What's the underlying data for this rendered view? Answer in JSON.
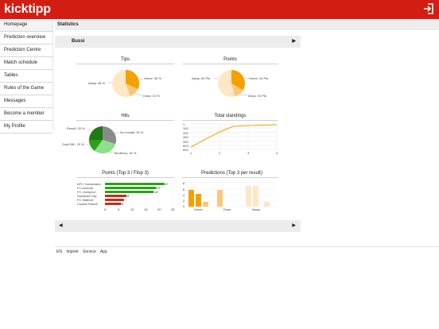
{
  "app": {
    "name": "kicktipp"
  },
  "sidebar": {
    "items": [
      {
        "label": "Homepage"
      },
      {
        "label": "Prediction overview"
      },
      {
        "label": "Prediction Centre"
      },
      {
        "label": "Match schedule"
      },
      {
        "label": "Tables"
      },
      {
        "label": "Rules of the Game"
      },
      {
        "label": "Messages"
      },
      {
        "label": "Become a member"
      },
      {
        "label": "My Profile"
      }
    ]
  },
  "section": {
    "title": "Statistics"
  },
  "player": {
    "name": "Bussi"
  },
  "colors": {
    "brand": "#d21e12",
    "orange": "#f4a100",
    "light_orange": "#fbc87a",
    "pale": "#fde7c4",
    "dark_green": "#1e7a12",
    "green": "#2aa11a",
    "light_green": "#8ee08a",
    "grey": "#8a8a8a",
    "red": "#c0301e"
  },
  "charts": {
    "tips": {
      "title": "Tips",
      "slices": [
        {
          "label": "Home: 38 %",
          "value": 38
        },
        {
          "label": "Draw: 10 %",
          "value": 10
        },
        {
          "label": "Away: 48 %",
          "value": 48
        }
      ]
    },
    "points": {
      "title": "Points",
      "slices": [
        {
          "label": "Home: 44 Pts",
          "value": 44
        },
        {
          "label": "Draw: 20 Pts",
          "value": 20
        },
        {
          "label": "Away: 50 Pts",
          "value": 50
        }
      ]
    },
    "hits": {
      "title": "Hits",
      "slices": [
        {
          "label": "No results: 30 %",
          "value": 30
        },
        {
          "label": "Tendency: 30 %",
          "value": 30
        },
        {
          "label": "Goal Diff.: 20 %",
          "value": 20
        },
        {
          "label": "Result: 20 %",
          "value": 20
        }
      ]
    },
    "standings": {
      "title": "Total standings",
      "y_ticks": [
        "1",
        "100",
        "200",
        "300",
        "400",
        "500",
        "600"
      ],
      "x_ticks": [
        "1",
        "2",
        "3",
        "4"
      ]
    },
    "top_flop": {
      "title": "Points (Top 3 / Flop 3)",
      "bars": [
        {
          "team": "AFC Sunderland",
          "value": 22,
          "label": "22"
        },
        {
          "team": "FC Arsenal",
          "value": 19,
          "label": "19"
        },
        {
          "team": "FC Liverpool",
          "value": 18,
          "label": "18"
        },
        {
          "team": "Swansea City",
          "value": 8,
          "label": "8"
        },
        {
          "team": "FC Watford",
          "value": 7,
          "label": "7"
        },
        {
          "team": "Crystal Palace",
          "value": 6,
          "label": "6"
        }
      ],
      "x_ticks": [
        "0",
        "5",
        "10",
        "15",
        "20",
        "25"
      ]
    },
    "predictions": {
      "title": "Predictions (Top 3 per result)",
      "groups": [
        "Home",
        "Draw",
        "Away"
      ],
      "y_ticks": [
        "0",
        "2",
        "4",
        "6",
        "8"
      ]
    }
  },
  "pager": {
    "prev": "◀",
    "next": "▶"
  },
  "footer": {
    "lang": "EN",
    "imprint": "Imprint",
    "service": "Service",
    "app": "App"
  }
}
